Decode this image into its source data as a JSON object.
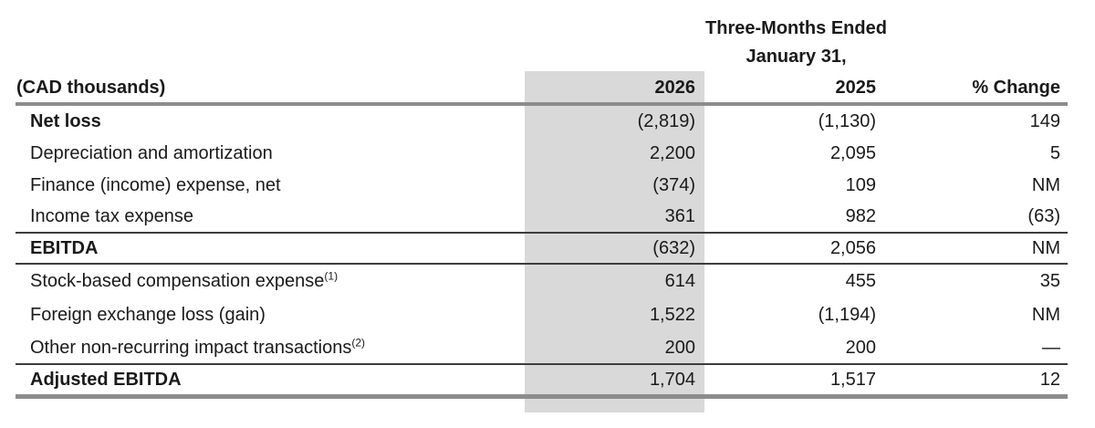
{
  "title": {
    "line1": "Three-Months Ended",
    "line2": "January 31,"
  },
  "table": {
    "unit_label": "(CAD thousands)",
    "columns": [
      "2026",
      "2025",
      "% Change"
    ],
    "rows": [
      {
        "label": "Net loss",
        "v2026": "(2,819)",
        "v2025": "(1,130)",
        "change": "149"
      },
      {
        "label": "Depreciation and amortization",
        "v2026": "2,200",
        "v2025": "2,095",
        "change": "5"
      },
      {
        "label": "Finance (income) expense, net",
        "v2026": "(374)",
        "v2025": "109",
        "change": "NM"
      },
      {
        "label": "Income tax expense",
        "v2026": "361",
        "v2025": "982",
        "change": "(63)"
      },
      {
        "label": "EBITDA",
        "v2026": "(632)",
        "v2025": "2,056",
        "change": "NM"
      },
      {
        "label": "Stock-based compensation expense",
        "sup": "(1)",
        "v2026": "614",
        "v2025": "455",
        "change": "35"
      },
      {
        "label": "Foreign exchange loss (gain)",
        "v2026": "1,522",
        "v2025": "(1,194)",
        "change": "NM"
      },
      {
        "label": "Other non-recurring impact transactions",
        "sup": "(2)",
        "v2026": "200",
        "v2025": "200",
        "change": "—"
      },
      {
        "label": "Adjusted EBITDA",
        "v2026": "1,704",
        "v2025": "1,517",
        "change": "12"
      }
    ]
  },
  "colors": {
    "highlight_column_bg": "#d9d9d9",
    "thick_rule": "#8c8c8c",
    "thin_rule": "#3d3d3d",
    "text": "#1a1a1a"
  }
}
